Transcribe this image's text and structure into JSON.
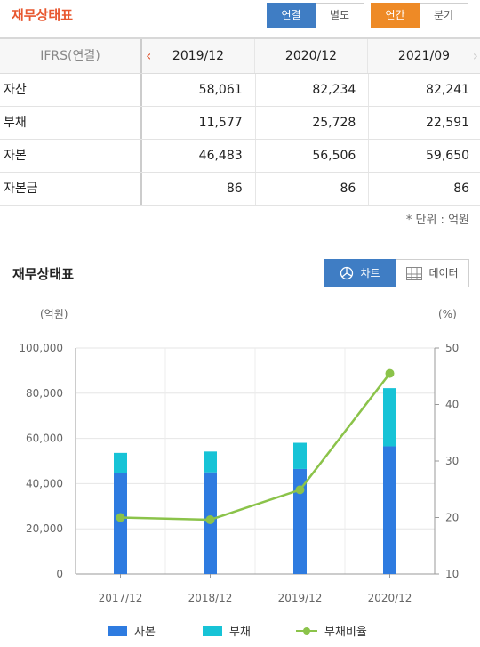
{
  "header": {
    "title": "재무상태표",
    "consolidation_options": [
      "연결",
      "별도"
    ],
    "period_options": [
      "연간",
      "분기"
    ]
  },
  "table": {
    "corner_label": "IFRS(연결)",
    "columns": [
      "2019/12",
      "2020/12",
      "2021/09"
    ],
    "rows": [
      {
        "label": "자산",
        "values": [
          "58,061",
          "82,234",
          "82,241"
        ]
      },
      {
        "label": "부채",
        "values": [
          "11,577",
          "25,728",
          "22,591"
        ]
      },
      {
        "label": "자본",
        "values": [
          "46,483",
          "56,506",
          "59,650"
        ]
      },
      {
        "label": "자본금",
        "values": [
          "86",
          "86",
          "86"
        ]
      }
    ],
    "unit_note": "* 단위 : 억원"
  },
  "chart_section": {
    "title": "재무상태표",
    "tab_chart": "차트",
    "tab_data": "데이터",
    "icon_chart": "pie-chart-icon",
    "icon_data": "table-icon"
  },
  "chart_data": {
    "type": "bar",
    "stacked": true,
    "categories": [
      "2017/12",
      "2018/12",
      "2019/12",
      "2020/12"
    ],
    "left_axis_unit": "(억원)",
    "right_axis_unit": "(%)",
    "ylim": [
      0,
      100000
    ],
    "yticks": [
      "0",
      "20,000",
      "40,000",
      "60,000",
      "80,000",
      "100,000"
    ],
    "y2lim": [
      10,
      50
    ],
    "y2ticks": [
      "10",
      "20",
      "30",
      "40",
      "50"
    ],
    "series": [
      {
        "name": "자본",
        "kind": "bar",
        "color": "#2e7be0",
        "values": [
          44600,
          45000,
          46483,
          56506
        ]
      },
      {
        "name": "부채",
        "kind": "bar",
        "color": "#17c3d6",
        "values": [
          9000,
          9200,
          11577,
          25728
        ]
      },
      {
        "name": "부채비율",
        "kind": "line",
        "axis": "right",
        "color": "#8bc34a",
        "values": [
          20.0,
          19.6,
          24.9,
          45.5
        ]
      }
    ],
    "grid": true
  }
}
